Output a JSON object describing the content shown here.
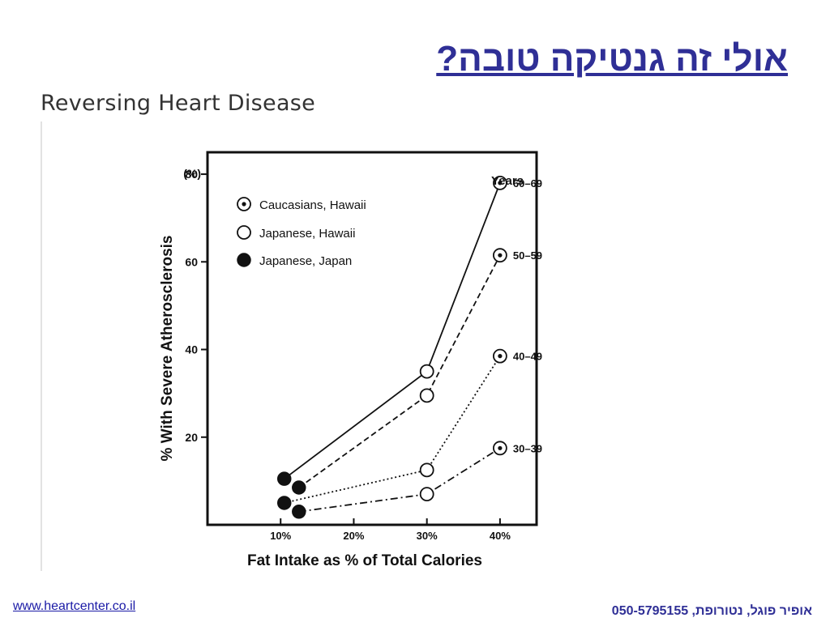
{
  "slide": {
    "title": "אולי זה גנטיקה טובה?",
    "scan_title": "Reversing Heart Disease",
    "footer_link": "www.heartcenter.co.il",
    "footer_author": "אופיר פוגל, נטורופת, 050-5795155"
  },
  "chart_data": {
    "type": "line",
    "title": "",
    "xlabel": "Fat Intake as % of Total Calories",
    "ylabel": "% With Severe Atherosclerosis",
    "y_unit_label": "(%)",
    "xlim": [
      0,
      45
    ],
    "ylim": [
      0,
      85
    ],
    "x_ticks": [
      10,
      20,
      30,
      40
    ],
    "x_tick_labels": [
      "10%",
      "20%",
      "30%",
      "40%"
    ],
    "y_ticks": [
      20,
      40,
      60,
      80
    ],
    "y_tick_labels": [
      "20",
      "40",
      "60",
      "80"
    ],
    "grid": false,
    "legend_position": "top-left",
    "legend": [
      {
        "label": "Caucasians, Hawaii",
        "marker": "dotted-circle"
      },
      {
        "label": "Japanese, Hawaii",
        "marker": "open-circle"
      },
      {
        "label": "Japanese, Japan",
        "marker": "filled-circle"
      }
    ],
    "age_group_header": "Years",
    "series": [
      {
        "name": "60–69",
        "line_style": "solid",
        "points": [
          {
            "x": 10.5,
            "y": 10.5,
            "marker": "filled-circle"
          },
          {
            "x": 30,
            "y": 35,
            "marker": "open-circle"
          },
          {
            "x": 40,
            "y": 78,
            "marker": "dotted-circle"
          }
        ]
      },
      {
        "name": "50–59",
        "line_style": "dashed",
        "points": [
          {
            "x": 12.5,
            "y": 8.5,
            "marker": "filled-circle"
          },
          {
            "x": 30,
            "y": 29.5,
            "marker": "open-circle"
          },
          {
            "x": 40,
            "y": 61.5,
            "marker": "dotted-circle"
          }
        ]
      },
      {
        "name": "40–49",
        "line_style": "dotted",
        "points": [
          {
            "x": 10.5,
            "y": 5,
            "marker": "filled-circle"
          },
          {
            "x": 30,
            "y": 12.5,
            "marker": "open-circle"
          },
          {
            "x": 40,
            "y": 38.5,
            "marker": "dotted-circle"
          }
        ]
      },
      {
        "name": "30–39",
        "line_style": "dash-dot",
        "points": [
          {
            "x": 12.5,
            "y": 3,
            "marker": "filled-circle"
          },
          {
            "x": 30,
            "y": 7,
            "marker": "open-circle"
          },
          {
            "x": 40,
            "y": 17.5,
            "marker": "dotted-circle"
          }
        ]
      }
    ]
  }
}
